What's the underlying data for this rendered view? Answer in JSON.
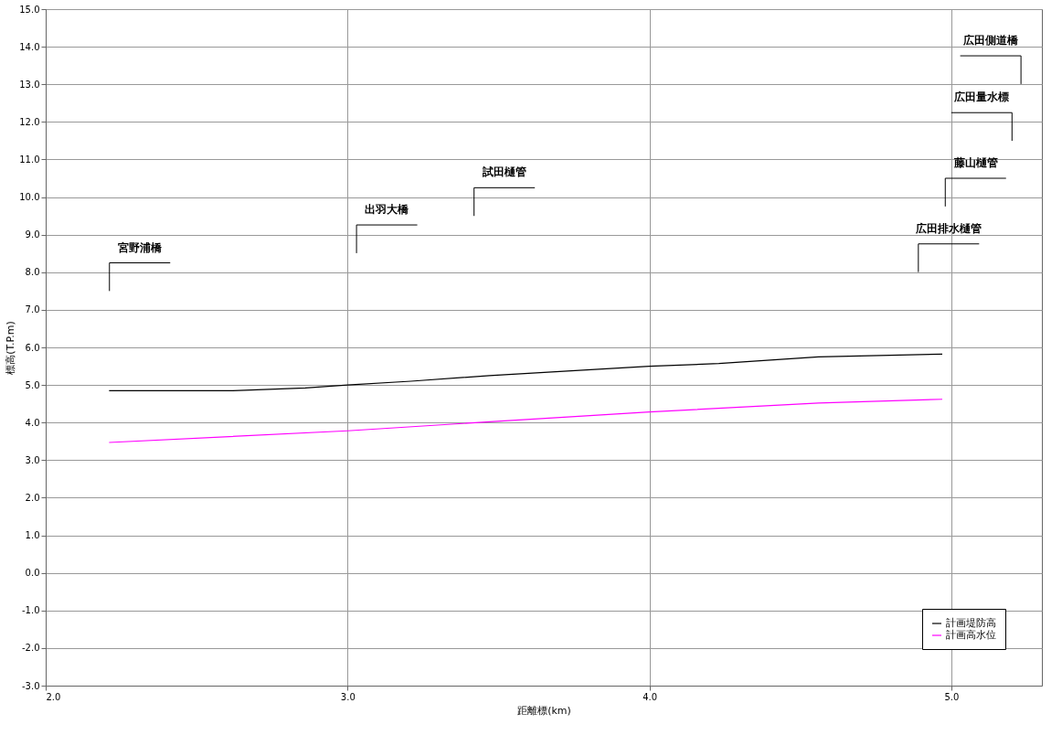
{
  "chart_data": {
    "type": "line",
    "xlabel": "距離標(km)",
    "ylabel": "標高(T.P.m)",
    "xlim": [
      2.0,
      5.3
    ],
    "xticks": [
      {
        "value": 2,
        "label": "2.0"
      },
      {
        "value": 3,
        "label": "3.0"
      },
      {
        "value": 4,
        "label": "4.0"
      },
      {
        "value": 5,
        "label": "5.0"
      }
    ],
    "ylim": [
      -3,
      15
    ],
    "yticks": [
      {
        "value": -3,
        "label": "-3.0"
      },
      {
        "value": -2,
        "label": "-2.0"
      },
      {
        "value": -1,
        "label": "-1.0"
      },
      {
        "value": 0,
        "label": "0.0"
      },
      {
        "value": 1,
        "label": "1.0"
      },
      {
        "value": 2,
        "label": "2.0"
      },
      {
        "value": 3,
        "label": "3.0"
      },
      {
        "value": 4,
        "label": "4.0"
      },
      {
        "value": 5,
        "label": "5.0"
      },
      {
        "value": 6,
        "label": "6.0"
      },
      {
        "value": 7,
        "label": "7.0"
      },
      {
        "value": 8,
        "label": "8.0"
      },
      {
        "value": 9,
        "label": "9.0"
      },
      {
        "value": 10,
        "label": "10.0"
      },
      {
        "value": 11,
        "label": "11.0"
      },
      {
        "value": 12,
        "label": "12.0"
      },
      {
        "value": 13,
        "label": "13.0"
      },
      {
        "value": 14,
        "label": "14.0"
      },
      {
        "value": 15,
        "label": "15.0"
      }
    ],
    "grid": true,
    "legend": "bottom right",
    "marker": "none",
    "line_style": "solid",
    "series": [
      {
        "name": "計画堤防高",
        "color": "#000000",
        "x": [
          2.21,
          2.62,
          2.86,
          3.0,
          3.21,
          3.47,
          4.0,
          4.23,
          4.56,
          4.97
        ],
        "values": [
          4.85,
          4.85,
          4.92,
          5.0,
          5.1,
          5.25,
          5.5,
          5.57,
          5.75,
          5.82
        ]
      },
      {
        "name": "計画高水位",
        "color": "#ff00ff",
        "x": [
          2.21,
          3.0,
          3.47,
          4.0,
          4.56,
          4.97
        ],
        "values": [
          3.47,
          3.78,
          4.02,
          4.28,
          4.52,
          4.62
        ]
      }
    ],
    "annotations": [
      "宮野浦橋",
      "出羽大橋",
      "試田樋管",
      "広田排水樋管",
      "藤山樋管",
      "広田量水標",
      "広田側道橋"
    ]
  }
}
